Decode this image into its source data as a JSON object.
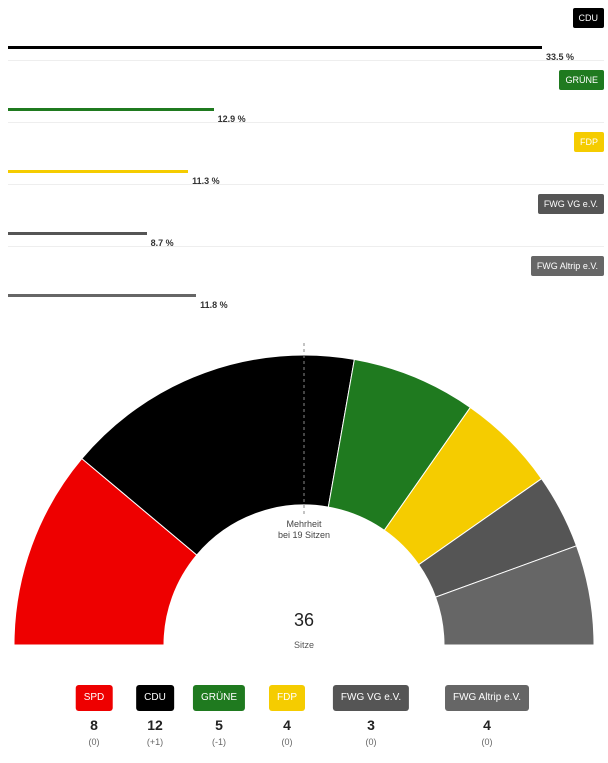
{
  "bar_chart": {
    "rows": [
      {
        "party": "CDU",
        "pct_label": "33.5 %",
        "value": 33.5,
        "color": "#000000",
        "text_color": "#ffffff"
      },
      {
        "party": "GRÜNE",
        "pct_label": "12.9 %",
        "value": 12.9,
        "color": "#1f7a1f",
        "text_color": "#ffffff"
      },
      {
        "party": "FDP",
        "pct_label": "11.3 %",
        "value": 11.3,
        "color": "#f5cc00",
        "text_color": "#ffffff"
      },
      {
        "party": "FWG VG e.V.",
        "pct_label": "8.7 %",
        "value": 8.7,
        "color": "#555555",
        "text_color": "#ffffff"
      },
      {
        "party": "FWG Altrip e.V.",
        "pct_label": "11.8 %",
        "value": 11.8,
        "color": "#666666",
        "text_color": "#ffffff"
      }
    ]
  },
  "parliament": {
    "total_seats": "36",
    "seats_label": "Sitze",
    "majority_line1": "Mehrheit",
    "majority_line2": "bei 19 Sitzen",
    "majority": 19
  },
  "legend": [
    {
      "party": "SPD",
      "seats": "8",
      "change": "(0)",
      "color": "#ee0000"
    },
    {
      "party": "CDU",
      "seats": "12",
      "change": "(+1)",
      "color": "#000000"
    },
    {
      "party": "GRÜNE",
      "seats": "5",
      "change": "(-1)",
      "color": "#1f7a1f"
    },
    {
      "party": "FDP",
      "seats": "4",
      "change": "(0)",
      "color": "#f5cc00"
    },
    {
      "party": "FWG VG e.V.",
      "seats": "3",
      "change": "(0)",
      "color": "#555555"
    },
    {
      "party": "FWG Altrip e.V.",
      "seats": "4",
      "change": "(0)",
      "color": "#666666"
    }
  ],
  "chart_data": [
    {
      "type": "bar",
      "categories": [
        "CDU",
        "GRÜNE",
        "FDP",
        "FWG VG e.V.",
        "FWG Altrip e.V."
      ],
      "values": [
        33.5,
        12.9,
        11.3,
        8.7,
        11.8
      ],
      "unit": "%"
    },
    {
      "type": "pie",
      "categories": [
        "SPD",
        "CDU",
        "GRÜNE",
        "FDP",
        "FWG VG e.V.",
        "FWG Altrip e.V."
      ],
      "values": [
        8,
        12,
        5,
        4,
        3,
        4
      ],
      "changes": [
        "(0)",
        "(+1)",
        "(-1)",
        "(0)",
        "(0)",
        "(0)"
      ],
      "total": 36,
      "majority": 19
    }
  ]
}
